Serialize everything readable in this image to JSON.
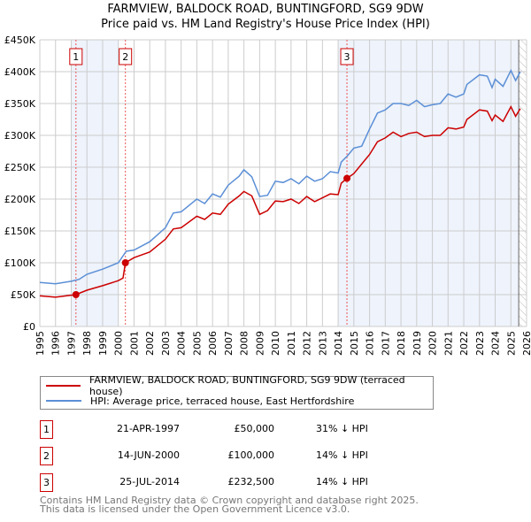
{
  "chart_data": {
    "type": "line",
    "title": "FARMVIEW, BALDOCK ROAD, BUNTINGFORD, SG9 9DW",
    "subtitle": "Price paid vs. HM Land Registry's House Price Index (HPI)",
    "xlim": [
      1995,
      2026
    ],
    "ylim": [
      0,
      450000
    ],
    "x_ticks": [
      "1995",
      "1996",
      "1997",
      "1998",
      "1999",
      "2000",
      "2001",
      "2002",
      "2003",
      "2004",
      "2005",
      "2006",
      "2007",
      "2008",
      "2009",
      "2010",
      "2011",
      "2012",
      "2013",
      "2014",
      "2015",
      "2016",
      "2017",
      "2018",
      "2019",
      "2020",
      "2021",
      "2022",
      "2023",
      "2024",
      "2025",
      "2026"
    ],
    "y_ticks": [
      {
        "v": 0,
        "l": "£0"
      },
      {
        "v": 50000,
        "l": "£50K"
      },
      {
        "v": 100000,
        "l": "£100K"
      },
      {
        "v": 150000,
        "l": "£150K"
      },
      {
        "v": 200000,
        "l": "£200K"
      },
      {
        "v": 250000,
        "l": "£250K"
      },
      {
        "v": 300000,
        "l": "£300K"
      },
      {
        "v": 350000,
        "l": "£350K"
      },
      {
        "v": 400000,
        "l": "£400K"
      },
      {
        "v": 450000,
        "l": "£450K"
      }
    ],
    "grid": true,
    "shaded_ranges": [
      [
        1997.0,
        2000.0
      ],
      [
        2014.0,
        2025.5
      ]
    ],
    "forecast_hatch_from": 2025.5,
    "series": [
      {
        "name": "FARMVIEW, BALDOCK ROAD, BUNTINGFORD, SG9 9DW (terraced house)",
        "color": "#cc0000",
        "x": [
          1995,
          1996,
          1997.3,
          1998,
          1999,
          2000,
          2000.3,
          2000.45,
          2001,
          2002,
          2003,
          2003.5,
          2004,
          2005,
          2005.5,
          2006,
          2006.5,
          2007,
          2007.7,
          2008,
          2008.5,
          2009,
          2009.5,
          2010,
          2010.5,
          2011,
          2011.5,
          2012,
          2012.5,
          2013,
          2013.5,
          2014,
          2014.2,
          2014.56,
          2015,
          2015.5,
          2016,
          2016.5,
          2017,
          2017.5,
          2018,
          2018.5,
          2019,
          2019.5,
          2020,
          2020.5,
          2021,
          2021.5,
          2022,
          2022.2,
          2023,
          2023.5,
          2023.8,
          2024,
          2024.5,
          2025,
          2025.3,
          2025.6
        ],
        "y": [
          48000,
          46000,
          50000,
          57000,
          64000,
          72000,
          76000,
          100000,
          108000,
          117000,
          137000,
          153000,
          155000,
          173000,
          168000,
          178000,
          176000,
          192000,
          205000,
          212000,
          205000,
          176000,
          182000,
          197000,
          196000,
          200000,
          193000,
          204000,
          196000,
          202000,
          208000,
          207000,
          225000,
          232500,
          240000,
          255000,
          270000,
          290000,
          296000,
          305000,
          298000,
          303000,
          305000,
          298000,
          300000,
          300000,
          312000,
          310000,
          313000,
          325000,
          340000,
          338000,
          323000,
          332000,
          322000,
          345000,
          330000,
          342000
        ]
      },
      {
        "name": "HPI: Average price, terraced house, East Hertfordshire",
        "color": "#5b8fd6",
        "x": [
          1995,
          1996,
          1997,
          1997.5,
          1998,
          1999,
          2000,
          2000.5,
          2001,
          2002,
          2003,
          2003.5,
          2004,
          2005,
          2005.5,
          2006,
          2006.5,
          2007,
          2007.7,
          2008,
          2008.5,
          2009,
          2009.5,
          2010,
          2010.5,
          2011,
          2011.5,
          2012,
          2012.5,
          2013,
          2013.5,
          2014,
          2014.2,
          2014.6,
          2015,
          2015.5,
          2016,
          2016.5,
          2017,
          2017.5,
          2018,
          2018.5,
          2019,
          2019.5,
          2020,
          2020.5,
          2021,
          2021.5,
          2022,
          2022.2,
          2023,
          2023.5,
          2023.8,
          2024,
          2024.5,
          2025,
          2025.3,
          2025.6
        ],
        "y": [
          69000,
          67000,
          71000,
          74000,
          82000,
          90000,
          100000,
          118000,
          120000,
          133000,
          155000,
          178000,
          180000,
          200000,
          193000,
          208000,
          203000,
          222000,
          236000,
          246000,
          235000,
          204000,
          206000,
          228000,
          226000,
          232000,
          224000,
          236000,
          228000,
          232000,
          243000,
          241000,
          258000,
          268000,
          280000,
          283000,
          310000,
          335000,
          340000,
          350000,
          350000,
          347000,
          355000,
          345000,
          348000,
          350000,
          365000,
          360000,
          365000,
          380000,
          395000,
          393000,
          375000,
          388000,
          377000,
          402000,
          386000,
          400000
        ]
      }
    ],
    "sales": [
      {
        "n": "1",
        "x": 1997.3,
        "y": 50000
      },
      {
        "n": "2",
        "x": 2000.45,
        "y": 100000
      },
      {
        "n": "3",
        "x": 2014.56,
        "y": 232500
      }
    ]
  },
  "legend": [
    "FARMVIEW, BALDOCK ROAD, BUNTINGFORD, SG9 9DW (terraced house)",
    "HPI: Average price, terraced house, East Hertfordshire"
  ],
  "transactions": [
    {
      "n": "1",
      "date": "21-APR-1997",
      "price": "£50,000",
      "hpi": "31% ↓ HPI"
    },
    {
      "n": "2",
      "date": "14-JUN-2000",
      "price": "£100,000",
      "hpi": "14% ↓ HPI"
    },
    {
      "n": "3",
      "date": "25-JUL-2014",
      "price": "£232,500",
      "hpi": "14% ↓ HPI"
    }
  ],
  "footer": [
    "Contains HM Land Registry data © Crown copyright and database right 2025.",
    "This data is licensed under the Open Government Licence v3.0."
  ]
}
